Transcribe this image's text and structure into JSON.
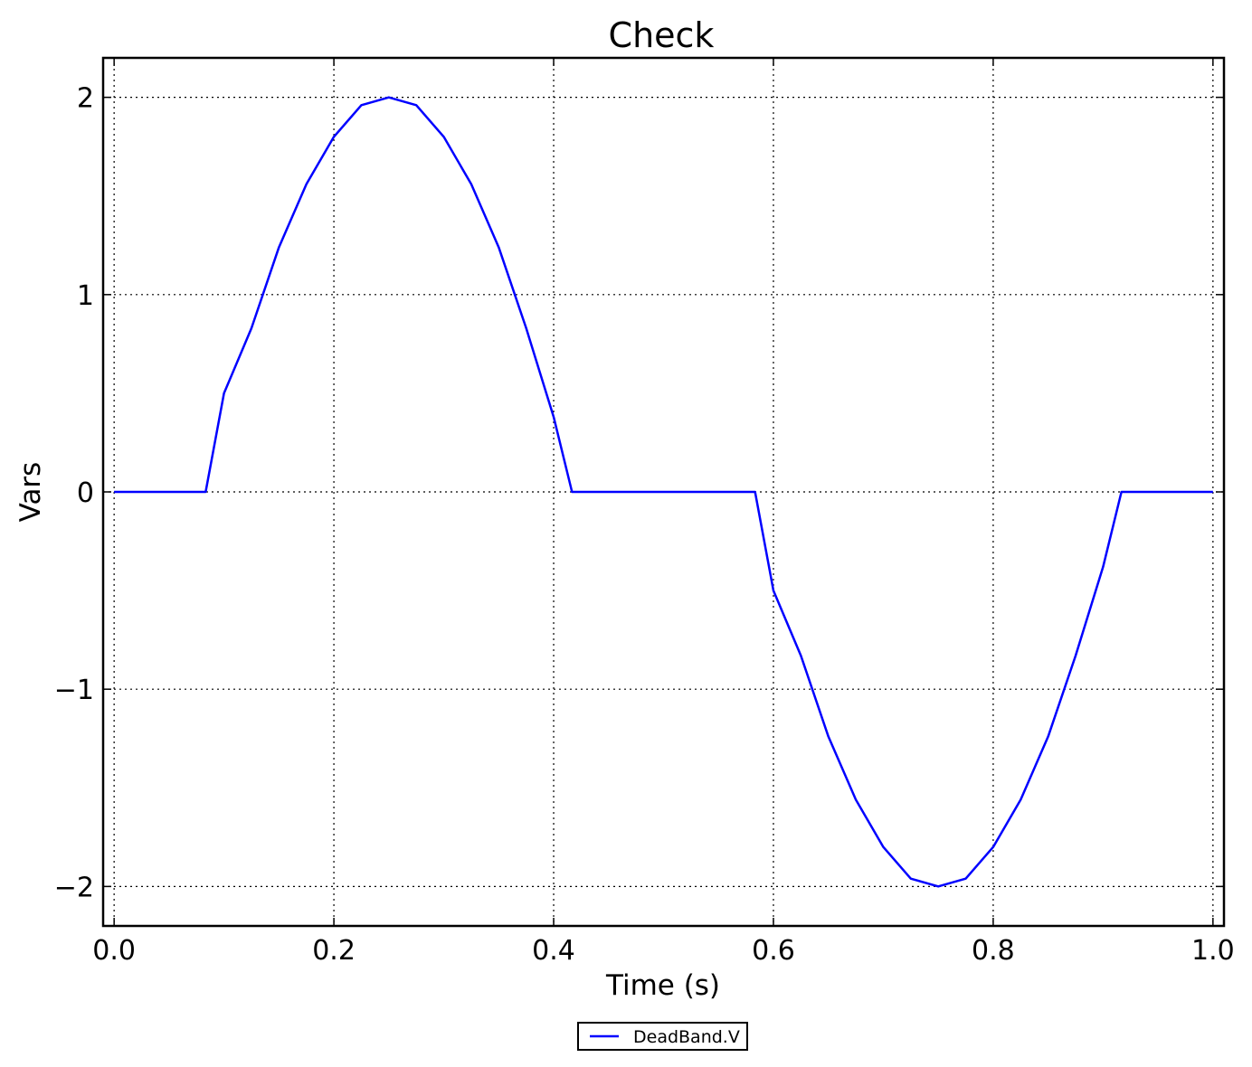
{
  "chart_data": {
    "type": "line",
    "title": "Check",
    "xlabel": "Time (s)",
    "ylabel": "Vars",
    "xlim": [
      -0.01,
      1.01
    ],
    "ylim": [
      -2.2,
      2.2
    ],
    "x_ticks": [
      0.0,
      0.2,
      0.4,
      0.6,
      0.8,
      1.0
    ],
    "x_tick_labels": [
      "0.0",
      "0.2",
      "0.4",
      "0.6",
      "0.8",
      "1.0"
    ],
    "y_ticks": [
      2,
      1,
      0,
      -1,
      -2
    ],
    "y_tick_labels": [
      "2",
      "1",
      "0",
      "−1",
      "−2"
    ],
    "grid": true,
    "legend_position": "below-center",
    "series": [
      {
        "name": "DeadBand.V",
        "color": "#0000ff",
        "x": [
          0.0,
          0.0833,
          0.1,
          0.125,
          0.15,
          0.175,
          0.2,
          0.225,
          0.25,
          0.275,
          0.3,
          0.325,
          0.35,
          0.375,
          0.4,
          0.4167,
          0.5,
          0.5833,
          0.6,
          0.625,
          0.65,
          0.675,
          0.7,
          0.725,
          0.75,
          0.775,
          0.8,
          0.825,
          0.85,
          0.875,
          0.9,
          0.9167,
          1.0
        ],
        "y": [
          0.0,
          0.0,
          0.5,
          0.83,
          1.24,
          1.56,
          1.8,
          1.96,
          2.0,
          1.96,
          1.8,
          1.56,
          1.24,
          0.83,
          0.38,
          0.0,
          0.0,
          0.0,
          -0.5,
          -0.83,
          -1.24,
          -1.56,
          -1.8,
          -1.96,
          -2.0,
          -1.96,
          -1.8,
          -1.56,
          -1.24,
          -0.83,
          -0.38,
          0.0,
          0.0
        ]
      }
    ]
  }
}
